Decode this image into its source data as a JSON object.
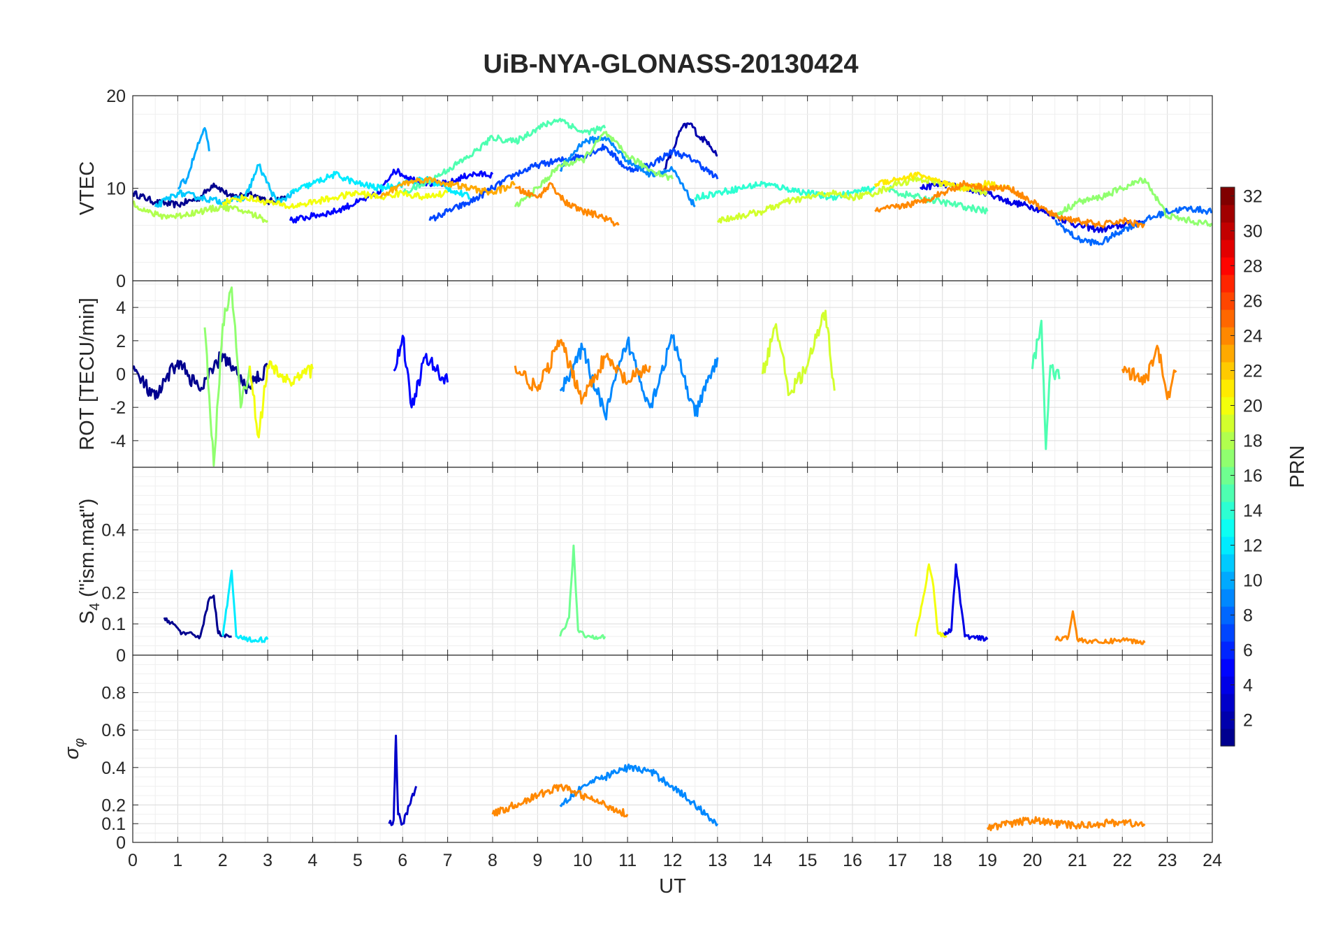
{
  "title": "UiB-NYA-GLONASS-20130424",
  "chart_data": [
    {
      "type": "line",
      "panel": "vtec",
      "ylabel": "VTEC",
      "xlim": [
        0,
        24
      ],
      "ylim": [
        0,
        20
      ],
      "yticks": [
        0,
        10,
        20
      ],
      "grid": true,
      "series": [
        {
          "prn": 1,
          "x": [
            0,
            0.5,
            1,
            1.5,
            1.8,
            2.2,
            2.6,
            3.0,
            3.4
          ],
          "y": [
            9.5,
            8.5,
            8.2,
            9.0,
            10.5,
            9.0,
            9.5,
            8.5,
            9.0
          ]
        },
        {
          "prn": 2,
          "x": [
            11.8,
            12.0,
            12.2,
            12.4,
            12.6,
            12.8,
            13.0
          ],
          "y": [
            12.0,
            14.0,
            16.5,
            17.0,
            15.5,
            15.0,
            13.5
          ]
        },
        {
          "prn": 4,
          "x": [
            17.5,
            18.0,
            18.5,
            19.0,
            19.5,
            20.0,
            20.5,
            21.0,
            21.5,
            22.0,
            22.5
          ],
          "y": [
            10.0,
            10.5,
            10.0,
            9.5,
            8.5,
            8.0,
            7.0,
            6.0,
            5.5,
            6.0,
            6.5
          ]
        },
        {
          "prn": 5,
          "x": [
            3.5,
            4.0,
            4.5,
            5.0,
            5.5,
            5.8,
            6.2,
            6.6,
            7.0,
            7.5,
            8.0
          ],
          "y": [
            6.5,
            7.0,
            7.5,
            8.5,
            9.5,
            12.0,
            11.0,
            10.5,
            10.5,
            11.5,
            11.5
          ]
        },
        {
          "prn": 7,
          "x": [
            6.6,
            7.0,
            7.5,
            8.0,
            8.5,
            9.0,
            9.5,
            10.0,
            10.5,
            11.0,
            11.5,
            12.0,
            12.5,
            13.0
          ],
          "y": [
            6.5,
            7.5,
            8.5,
            10.0,
            11.5,
            12.5,
            13.0,
            13.5,
            14.5,
            12.0,
            12.5,
            14.0,
            13.0,
            11.0
          ]
        },
        {
          "prn": 8,
          "x": [
            20.5,
            21.0,
            21.5,
            22.0,
            22.5,
            23.0,
            23.5,
            24.0
          ],
          "y": [
            6.5,
            4.5,
            4.0,
            5.5,
            6.5,
            7.5,
            7.8,
            7.5
          ]
        },
        {
          "prn": 9,
          "x": [
            9.5,
            10.0,
            10.5,
            11.0,
            11.5,
            12.0,
            12.5
          ],
          "y": [
            12.0,
            15.0,
            15.5,
            13.0,
            11.5,
            12.0,
            8.0
          ]
        },
        {
          "prn": 10,
          "x": [
            1.0,
            1.2,
            1.4,
            1.6,
            1.7
          ],
          "y": [
            10.0,
            11.0,
            14.0,
            16.5,
            14.0
          ]
        },
        {
          "prn": 11,
          "x": [
            0.5,
            1.0,
            1.5,
            2.0,
            2.5,
            2.8,
            3.2,
            3.6
          ],
          "y": [
            8.0,
            9.5,
            9.0,
            8.5,
            9.0,
            12.5,
            8.5,
            9.5
          ]
        },
        {
          "prn": 12,
          "x": [
            3.5,
            4.0,
            4.5,
            5.0,
            5.5,
            6.0,
            6.5,
            7.0,
            7.5
          ],
          "y": [
            9.5,
            10.5,
            11.5,
            10.5,
            10.0,
            10.5,
            11.0,
            10.0,
            9.0
          ]
        },
        {
          "prn": 14,
          "x": [
            12.5,
            13.0,
            13.5,
            14.0,
            14.5,
            15.0,
            15.5,
            16.0,
            16.5
          ],
          "y": [
            9.0,
            9.5,
            10.0,
            10.5,
            10.0,
            9.5,
            9.0,
            9.5,
            10.0
          ]
        },
        {
          "prn": 15,
          "x": [
            16.8,
            17.0,
            17.5,
            18.0,
            18.5,
            19.0
          ],
          "y": [
            10.0,
            9.5,
            9.0,
            8.5,
            8.0,
            7.5
          ]
        },
        {
          "prn": 15,
          "x": [
            6.0,
            6.5,
            7.0,
            7.5,
            8.0,
            8.5,
            9.0,
            9.5,
            10.0,
            10.5
          ],
          "y": [
            9.5,
            10.5,
            12.0,
            13.5,
            15.5,
            15.0,
            16.5,
            17.5,
            16.0,
            16.5
          ]
        },
        {
          "prn": 17,
          "x": [
            8.5,
            9.0,
            9.5,
            10.0,
            10.5,
            11.0,
            11.5,
            12.0
          ],
          "y": [
            8.0,
            10.0,
            12.5,
            13.0,
            16.0,
            13.5,
            12.0,
            11.0
          ]
        },
        {
          "prn": 17,
          "x": [
            20.5,
            21.0,
            21.5,
            22.0,
            22.5,
            23.0,
            23.5,
            24.0
          ],
          "y": [
            7.0,
            8.5,
            9.0,
            10.0,
            11.0,
            7.0,
            6.5,
            6.0
          ]
        },
        {
          "prn": 18,
          "x": [
            0,
            0.3,
            0.6,
            1.0,
            1.5,
            2.0,
            2.5,
            3.0
          ],
          "y": [
            8.5,
            7.5,
            7.0,
            7.0,
            7.5,
            8.0,
            7.5,
            6.5
          ]
        },
        {
          "prn": 19,
          "x": [
            13.0,
            13.5,
            14.0,
            14.5,
            15.0,
            15.5,
            16.0,
            16.5,
            17.0,
            17.5,
            18.0,
            18.5,
            19.0
          ],
          "y": [
            6.5,
            7.0,
            7.5,
            8.5,
            9.0,
            9.5,
            9.0,
            9.5,
            10.5,
            11.0,
            10.5,
            10.0,
            9.5
          ]
        },
        {
          "prn": 20,
          "x": [
            2.0,
            2.5,
            3.0,
            3.5,
            4.0,
            4.5,
            5.0,
            5.5,
            6.0,
            6.5,
            7.0
          ],
          "y": [
            8.5,
            9.0,
            8.5,
            8.0,
            8.5,
            9.0,
            9.5,
            9.0,
            9.5,
            9.0,
            9.5
          ]
        },
        {
          "prn": 21,
          "x": [
            16.5,
            17.0,
            17.5,
            18.0,
            18.5,
            19.0,
            19.5
          ],
          "y": [
            10.5,
            11.0,
            11.5,
            10.5,
            10.0,
            10.5,
            10.0
          ]
        },
        {
          "prn": 23,
          "x": [
            5.5,
            6.0,
            6.5,
            7.0,
            7.5,
            8.0,
            8.5
          ],
          "y": [
            9.0,
            10.5,
            11.0,
            10.5,
            10.0,
            9.5,
            10.5
          ]
        },
        {
          "prn": 24,
          "x": [
            8.5,
            9.0,
            9.3,
            9.6,
            10.0,
            10.4,
            10.8
          ],
          "y": [
            10.0,
            9.0,
            10.5,
            8.5,
            7.5,
            7.0,
            6.0
          ]
        },
        {
          "prn": 24,
          "x": [
            16.5,
            17.0,
            17.5,
            18.0,
            18.5,
            19.0,
            19.5,
            20.0,
            20.5,
            21.0,
            21.5,
            22.0,
            22.5
          ],
          "y": [
            7.5,
            8.0,
            8.5,
            9.5,
            10.5,
            10.0,
            10.0,
            8.5,
            7.0,
            6.5,
            6.0,
            6.5,
            6.0
          ]
        }
      ]
    },
    {
      "type": "line",
      "panel": "rot",
      "ylabel": "ROT [TECU/min]",
      "xlim": [
        0,
        24
      ],
      "ylim": [
        -5.6,
        5.6
      ],
      "yticks": [
        -4,
        -2,
        0,
        2,
        4
      ],
      "grid": true,
      "series": [
        {
          "prn": 1,
          "x": [
            0,
            0.5,
            1.0,
            1.5,
            2.0,
            2.5,
            3.0
          ],
          "y": [
            0.3,
            -1.5,
            0.8,
            -1.0,
            1.2,
            -0.8,
            0.3
          ]
        },
        {
          "prn": 5,
          "x": [
            5.8,
            6.0,
            6.2,
            6.5,
            7.0
          ],
          "y": [
            0.2,
            2.3,
            -2.0,
            1.0,
            -0.5
          ]
        },
        {
          "prn": 9,
          "x": [
            9.5,
            10.0,
            10.5,
            11.0,
            11.5,
            12.0,
            12.5,
            13.0
          ],
          "y": [
            -1.0,
            1.5,
            -2.5,
            2.0,
            -2.0,
            2.2,
            -2.5,
            1.0
          ]
        },
        {
          "prn": 15,
          "x": [
            20.0,
            20.2,
            20.3,
            20.4,
            20.6
          ],
          "y": [
            0.3,
            3.2,
            -4.5,
            0.5,
            -0.3
          ]
        },
        {
          "prn": 17,
          "x": [
            1.6,
            1.8,
            2.0,
            2.2,
            2.4,
            2.6
          ],
          "y": [
            2.8,
            -5.5,
            3.0,
            5.2,
            -2.0,
            0.5
          ]
        },
        {
          "prn": 19,
          "x": [
            14.0,
            14.3,
            14.6,
            15.0,
            15.4,
            15.6
          ],
          "y": [
            0.0,
            3.0,
            -1.2,
            0.5,
            3.8,
            -1.0
          ]
        },
        {
          "prn": 20,
          "x": [
            2.6,
            2.8,
            3.0,
            3.5,
            4.0
          ],
          "y": [
            0.5,
            -3.8,
            0.5,
            -0.5,
            0.3
          ]
        },
        {
          "prn": 24,
          "x": [
            8.5,
            9.0,
            9.5,
            10.0,
            10.5,
            11.0,
            11.5
          ],
          "y": [
            0.5,
            -1.0,
            2.0,
            -1.5,
            1.0,
            -0.5,
            0.5
          ]
        },
        {
          "prn": 24,
          "x": [
            22.0,
            22.5,
            22.8,
            23.0,
            23.2
          ],
          "y": [
            0.3,
            -0.5,
            1.5,
            -1.5,
            0.2
          ]
        }
      ]
    },
    {
      "type": "line",
      "panel": "s4",
      "ylabel": "S_4 (\"ism.mat\")",
      "xlim": [
        0,
        24
      ],
      "ylim": [
        0,
        0.6
      ],
      "yticks": [
        0,
        0.1,
        0.2,
        0.4
      ],
      "grid": true,
      "series": [
        {
          "prn": 1,
          "x": [
            0.7,
            0.9,
            1.1,
            1.5,
            1.7,
            1.8,
            1.9,
            2.2
          ],
          "y": [
            0.12,
            0.1,
            0.07,
            0.06,
            0.18,
            0.19,
            0.07,
            0.06
          ]
        },
        {
          "prn": 4,
          "x": [
            18.0,
            18.2,
            18.3,
            18.5,
            19.0
          ],
          "y": [
            0.06,
            0.08,
            0.29,
            0.06,
            0.05
          ]
        },
        {
          "prn": 12,
          "x": [
            2.0,
            2.2,
            2.3,
            2.5,
            3.0
          ],
          "y": [
            0.06,
            0.27,
            0.06,
            0.05,
            0.05
          ]
        },
        {
          "prn": 16,
          "x": [
            9.5,
            9.7,
            9.8,
            9.9,
            10.1,
            10.5
          ],
          "y": [
            0.06,
            0.12,
            0.35,
            0.08,
            0.06,
            0.06
          ]
        },
        {
          "prn": 20,
          "x": [
            17.4,
            17.6,
            17.7,
            17.8,
            17.9,
            18.1
          ],
          "y": [
            0.06,
            0.2,
            0.29,
            0.22,
            0.07,
            0.06
          ]
        },
        {
          "prn": 24,
          "x": [
            20.5,
            20.8,
            20.9,
            21.0,
            21.5,
            22.0,
            22.5
          ],
          "y": [
            0.05,
            0.06,
            0.14,
            0.05,
            0.04,
            0.05,
            0.04
          ]
        }
      ]
    },
    {
      "type": "line",
      "panel": "sigma_phi",
      "ylabel": "σ_φ",
      "xlabel": "UT",
      "xlim": [
        0,
        24
      ],
      "ylim": [
        0,
        1
      ],
      "yticks": [
        0,
        0.1,
        0.2,
        0.4,
        0.6,
        0.8
      ],
      "xticks": [
        "0",
        "1",
        "2",
        "3",
        "4",
        "5",
        "6",
        "7",
        "8",
        "9",
        "10",
        "11",
        "12",
        "13",
        "14",
        "15",
        "16",
        "17",
        "18",
        "19",
        "20",
        "21",
        "22",
        "23",
        "24"
      ],
      "grid": true,
      "series": [
        {
          "prn": 3,
          "x": [
            5.7,
            5.8,
            5.85,
            5.9,
            6.0,
            6.3
          ],
          "y": [
            0.1,
            0.12,
            0.57,
            0.15,
            0.1,
            0.3
          ]
        },
        {
          "prn": 9,
          "x": [
            9.5,
            10.0,
            10.5,
            11.0,
            11.5,
            12.0,
            12.5,
            13.0
          ],
          "y": [
            0.2,
            0.3,
            0.35,
            0.4,
            0.38,
            0.3,
            0.2,
            0.1
          ]
        },
        {
          "prn": 24,
          "x": [
            8.0,
            8.5,
            9.0,
            9.5,
            10.0,
            10.5,
            11.0
          ],
          "y": [
            0.15,
            0.2,
            0.25,
            0.3,
            0.25,
            0.2,
            0.15
          ]
        },
        {
          "prn": 24,
          "x": [
            19.0,
            19.5,
            20.0,
            20.5,
            21.0,
            21.5,
            22.0,
            22.5
          ],
          "y": [
            0.08,
            0.1,
            0.12,
            0.1,
            0.09,
            0.1,
            0.11,
            0.09
          ]
        }
      ]
    }
  ],
  "colorbar": {
    "label": "PRN",
    "min": 1,
    "max": 32,
    "ticks": [
      "2",
      "4",
      "6",
      "8",
      "10",
      "12",
      "14",
      "16",
      "18",
      "20",
      "22",
      "24",
      "26",
      "28",
      "30",
      "32"
    ],
    "colormap": [
      "#00008f",
      "#0000ff",
      "#0080ff",
      "#00ffff",
      "#80ff80",
      "#ffff00",
      "#ff8000",
      "#ff0000",
      "#800000"
    ]
  }
}
